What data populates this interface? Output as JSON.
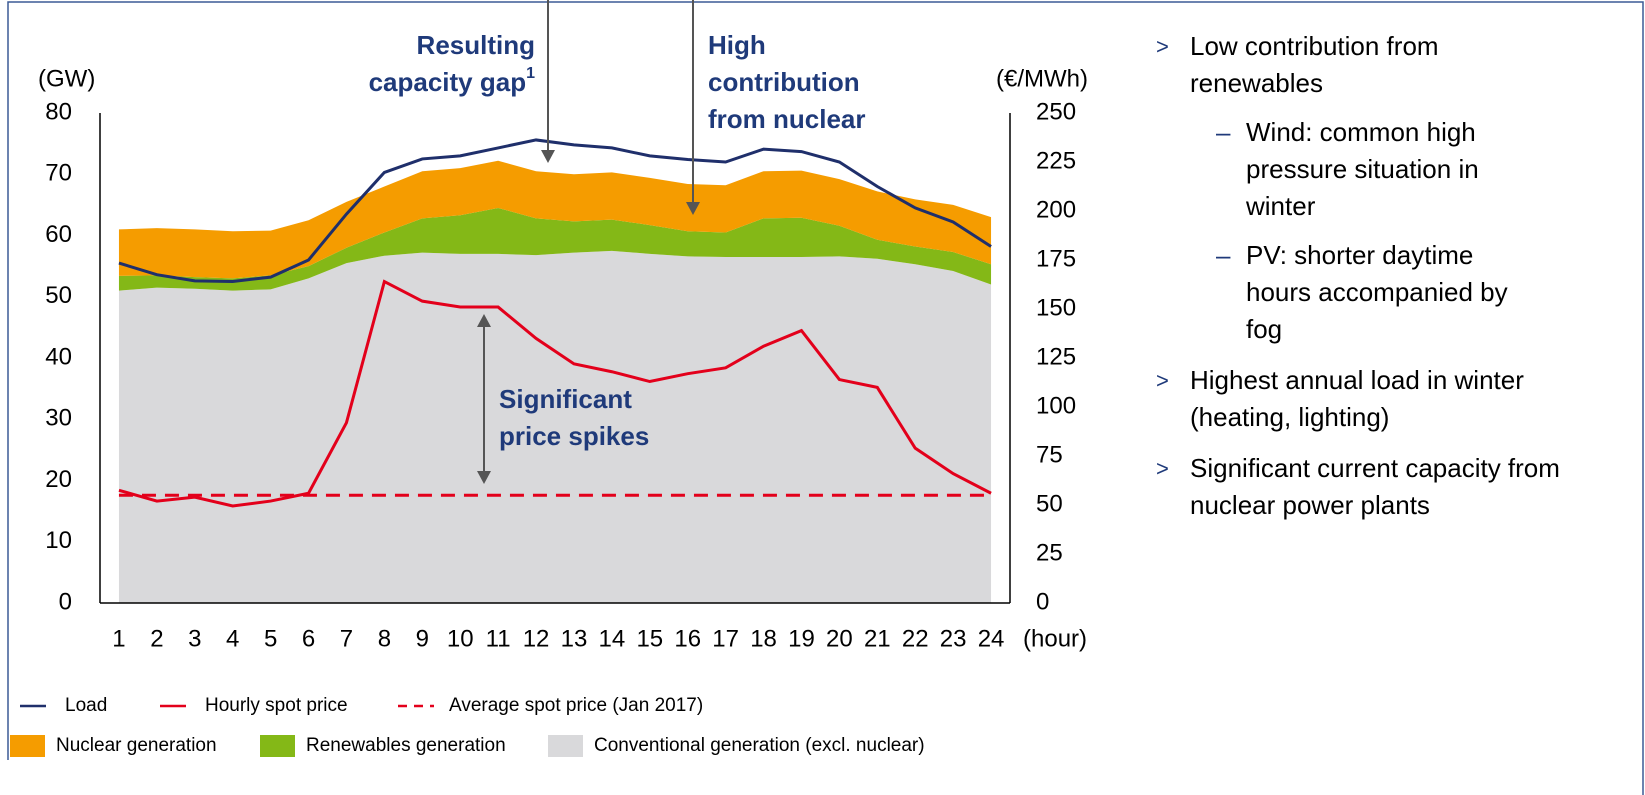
{
  "chart_data": {
    "type": "stacked_area_line",
    "y_label": "(GW)",
    "y2_label": "(€/MWh)",
    "x_label": "(hour)",
    "x": [
      1,
      2,
      3,
      4,
      5,
      6,
      7,
      8,
      9,
      10,
      11,
      12,
      13,
      14,
      15,
      16,
      17,
      18,
      19,
      20,
      21,
      22,
      23,
      24
    ],
    "xlim": [
      0.5,
      24.5
    ],
    "xticks": [
      1,
      2,
      3,
      4,
      5,
      6,
      7,
      8,
      9,
      10,
      11,
      12,
      13,
      14,
      15,
      16,
      17,
      18,
      19,
      20,
      21,
      22,
      23,
      24
    ],
    "ylim": [
      0,
      80
    ],
    "yticks": [
      0,
      10,
      20,
      30,
      40,
      50,
      60,
      70,
      80
    ],
    "y2lim": [
      0,
      250
    ],
    "y2ticks": [
      0,
      25,
      50,
      75,
      100,
      125,
      150,
      175,
      200,
      225,
      250
    ],
    "grid": false,
    "series": [
      {
        "name": "Load",
        "kind": "line",
        "color": "#1f2f6b",
        "values": [
          55.5,
          53.6,
          52.6,
          52.5,
          53.2,
          56,
          63.5,
          70.3,
          72.5,
          73,
          74.3,
          75.6,
          74.8,
          74.3,
          73,
          72.4,
          72,
          74.1,
          73.7,
          72,
          68,
          64.5,
          62.2,
          58.2
        ]
      },
      {
        "name": "Hourly spot price",
        "kind": "line",
        "axis": "y2",
        "color": "#e3001b",
        "values": [
          57.5,
          52,
          54,
          49.5,
          52,
          56,
          92,
          164,
          154,
          151,
          151,
          135,
          122,
          118,
          113,
          117,
          120,
          131,
          139,
          114,
          110,
          79,
          66,
          56
        ]
      },
      {
        "name": "Average spot price (Jan 2017)",
        "kind": "line",
        "axis": "y2",
        "dashed": true,
        "color": "#e3001b",
        "values": [
          55,
          55,
          55,
          55,
          55,
          55,
          55,
          55,
          55,
          55,
          55,
          55,
          55,
          55,
          55,
          55,
          55,
          55,
          55,
          55,
          55,
          55,
          55,
          55
        ]
      },
      {
        "name": "Nuclear generation",
        "kind": "area",
        "color": "#f59c00",
        "values": [
          7.6,
          7.7,
          7.8,
          7.7,
          7.3,
          7.5,
          7.5,
          7.5,
          7.7,
          7.7,
          7.7,
          7.7,
          7.7,
          7.7,
          7.7,
          7.7,
          7.7,
          7.7,
          7.7,
          7.6,
          7.9,
          7.7,
          7.7,
          7.7
        ]
      },
      {
        "name": "Renewables generation",
        "kind": "area",
        "color": "#84b817",
        "values": [
          2.4,
          2,
          1.9,
          2,
          2.3,
          2,
          2.5,
          3.8,
          5.6,
          6.3,
          7.5,
          6,
          5.1,
          5.1,
          4.7,
          4.1,
          4,
          6.3,
          6.4,
          5,
          3.1,
          2.9,
          3.1,
          3.3
        ]
      },
      {
        "name": "Conventional generation (excl. nuclear)",
        "kind": "area",
        "color": "#d9d9db",
        "values": [
          51,
          51.5,
          51.3,
          51,
          51.2,
          53,
          55.5,
          56.7,
          57.2,
          57,
          57,
          56.8,
          57.2,
          57.5,
          57,
          56.6,
          56.5,
          56.5,
          56.5,
          56.6,
          56.2,
          55.3,
          54.2,
          52
        ]
      }
    ],
    "annotations": [
      {
        "lines": [
          "Resulting",
          "capacity gap"
        ],
        "sup": "1"
      },
      {
        "lines": [
          "High",
          "contribution",
          "from nuclear"
        ]
      },
      {
        "lines": [
          "Significant",
          "price spikes"
        ]
      }
    ]
  },
  "notes": {
    "bullets": [
      {
        "text": "Low contribution from renewables",
        "subs": [
          "Wind: common high pressure situation in winter",
          "PV: shorter daytime hours accompanied by fog"
        ]
      },
      {
        "text": "Highest annual load in winter (heating, lighting)",
        "subs": []
      },
      {
        "text": "Significant current capacity from nuclear power plants",
        "subs": []
      }
    ],
    "marker": ">",
    "sub_marker": "–"
  }
}
